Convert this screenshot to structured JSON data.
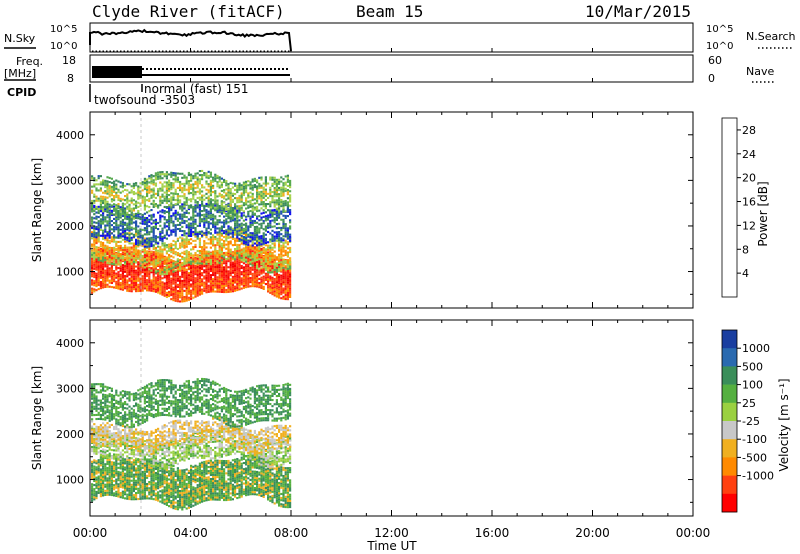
{
  "header": {
    "station": "Clyde River (fitACF)",
    "beam": "Beam 15",
    "date": "10/Mar/2015"
  },
  "top_panels": {
    "nsky_label": "N.Sky",
    "nsky_top": "10^5",
    "nsky_bottom": "10^0",
    "nsearch_label": "N.Search",
    "freq_label_1": "Freq.",
    "freq_label_2": "[MHz]",
    "freq_top": "18",
    "freq_bottom": "8",
    "nave_top": "60",
    "nave_bottom": "0",
    "nave_label": "Nave",
    "cpid_label": "CPID",
    "cpid_1": "twofsound -3503",
    "cpid_2": "normal (fast) 151"
  },
  "colors": {
    "power_scale": [
      "#1010ee",
      "#2050b0",
      "#3a8a5a",
      "#58aa50",
      "#a6d24c",
      "#f0b020",
      "#ff8a00",
      "#ff4a10",
      "#ff1a10",
      "#f20000"
    ],
    "velocity_scale": [
      "#1a3ea0",
      "#2a6ab0",
      "#3a8e5a",
      "#55b040",
      "#9ad040",
      "#c8c8c8",
      "#f0b020",
      "#ff8a00",
      "#ff4010",
      "#ff0000"
    ]
  },
  "chart_data": [
    {
      "type": "heatmap",
      "title": "",
      "ylabel": "Slant Range [km]",
      "xlabel": "Time UT",
      "ylim": [
        200,
        4500
      ],
      "x_ticks": [
        "00:00",
        "04:00",
        "08:00",
        "12:00",
        "16:00",
        "20:00",
        "00:00"
      ],
      "y_ticks": [
        1000,
        2000,
        3000,
        4000
      ],
      "colorbar_label": "Power [dB]",
      "colorbar_ticks": [
        4,
        8,
        12,
        16,
        20,
        24,
        28
      ],
      "colorbar_range": [
        0,
        30
      ],
      "data_coverage_hours": [
        0,
        8
      ],
      "bands": [
        {
          "range_km": [
            500,
            1400
          ],
          "value": 26
        },
        {
          "range_km": [
            1100,
            1800
          ],
          "value": 18
        },
        {
          "range_km": [
            1700,
            2400
          ],
          "value": 8
        },
        {
          "range_km": [
            2300,
            3100
          ],
          "value": 14
        }
      ]
    },
    {
      "type": "heatmap",
      "title": "",
      "ylabel": "Slant Range [km]",
      "xlabel": "Time UT",
      "ylim": [
        200,
        4500
      ],
      "x_ticks": [
        "00:00",
        "04:00",
        "08:00",
        "12:00",
        "16:00",
        "20:00",
        "00:00"
      ],
      "y_ticks": [
        1000,
        2000,
        3000,
        4000
      ],
      "colorbar_label": "Velocity [m s⁻¹]",
      "colorbar_ticks": [
        1000,
        500,
        100,
        25,
        -25,
        -100,
        -500,
        -1000
      ],
      "data_coverage_hours": [
        0,
        8
      ],
      "bands": [
        {
          "range_km": [
            500,
            1400
          ],
          "value": 100
        },
        {
          "range_km": [
            1400,
            2000
          ],
          "value": 0
        },
        {
          "range_km": [
            1700,
            2200
          ],
          "value": -100
        },
        {
          "range_km": [
            2300,
            3100
          ],
          "value": 100
        }
      ]
    }
  ]
}
